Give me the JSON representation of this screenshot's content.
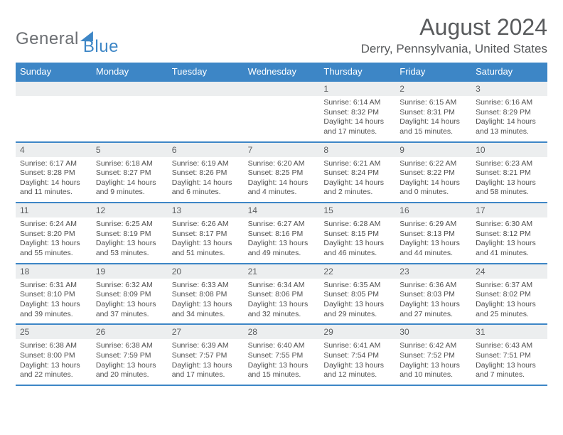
{
  "logo": {
    "part1": "General",
    "part2": "Blue"
  },
  "title": "August 2024",
  "location": "Derry, Pennsylvania, United States",
  "weekdays": [
    "Sunday",
    "Monday",
    "Tuesday",
    "Wednesday",
    "Thursday",
    "Friday",
    "Saturday"
  ],
  "colors": {
    "accent": "#3d86c6",
    "header_text": "#585a5c",
    "daynum_bg": "#eceeef",
    "text": "#4f4f4f"
  },
  "weeks": [
    [
      {
        "num": "",
        "sunrise": "",
        "sunset": "",
        "daylight": ""
      },
      {
        "num": "",
        "sunrise": "",
        "sunset": "",
        "daylight": ""
      },
      {
        "num": "",
        "sunrise": "",
        "sunset": "",
        "daylight": ""
      },
      {
        "num": "",
        "sunrise": "",
        "sunset": "",
        "daylight": ""
      },
      {
        "num": "1",
        "sunrise": "Sunrise: 6:14 AM",
        "sunset": "Sunset: 8:32 PM",
        "daylight": "Daylight: 14 hours and 17 minutes."
      },
      {
        "num": "2",
        "sunrise": "Sunrise: 6:15 AM",
        "sunset": "Sunset: 8:31 PM",
        "daylight": "Daylight: 14 hours and 15 minutes."
      },
      {
        "num": "3",
        "sunrise": "Sunrise: 6:16 AM",
        "sunset": "Sunset: 8:29 PM",
        "daylight": "Daylight: 14 hours and 13 minutes."
      }
    ],
    [
      {
        "num": "4",
        "sunrise": "Sunrise: 6:17 AM",
        "sunset": "Sunset: 8:28 PM",
        "daylight": "Daylight: 14 hours and 11 minutes."
      },
      {
        "num": "5",
        "sunrise": "Sunrise: 6:18 AM",
        "sunset": "Sunset: 8:27 PM",
        "daylight": "Daylight: 14 hours and 9 minutes."
      },
      {
        "num": "6",
        "sunrise": "Sunrise: 6:19 AM",
        "sunset": "Sunset: 8:26 PM",
        "daylight": "Daylight: 14 hours and 6 minutes."
      },
      {
        "num": "7",
        "sunrise": "Sunrise: 6:20 AM",
        "sunset": "Sunset: 8:25 PM",
        "daylight": "Daylight: 14 hours and 4 minutes."
      },
      {
        "num": "8",
        "sunrise": "Sunrise: 6:21 AM",
        "sunset": "Sunset: 8:24 PM",
        "daylight": "Daylight: 14 hours and 2 minutes."
      },
      {
        "num": "9",
        "sunrise": "Sunrise: 6:22 AM",
        "sunset": "Sunset: 8:22 PM",
        "daylight": "Daylight: 14 hours and 0 minutes."
      },
      {
        "num": "10",
        "sunrise": "Sunrise: 6:23 AM",
        "sunset": "Sunset: 8:21 PM",
        "daylight": "Daylight: 13 hours and 58 minutes."
      }
    ],
    [
      {
        "num": "11",
        "sunrise": "Sunrise: 6:24 AM",
        "sunset": "Sunset: 8:20 PM",
        "daylight": "Daylight: 13 hours and 55 minutes."
      },
      {
        "num": "12",
        "sunrise": "Sunrise: 6:25 AM",
        "sunset": "Sunset: 8:19 PM",
        "daylight": "Daylight: 13 hours and 53 minutes."
      },
      {
        "num": "13",
        "sunrise": "Sunrise: 6:26 AM",
        "sunset": "Sunset: 8:17 PM",
        "daylight": "Daylight: 13 hours and 51 minutes."
      },
      {
        "num": "14",
        "sunrise": "Sunrise: 6:27 AM",
        "sunset": "Sunset: 8:16 PM",
        "daylight": "Daylight: 13 hours and 49 minutes."
      },
      {
        "num": "15",
        "sunrise": "Sunrise: 6:28 AM",
        "sunset": "Sunset: 8:15 PM",
        "daylight": "Daylight: 13 hours and 46 minutes."
      },
      {
        "num": "16",
        "sunrise": "Sunrise: 6:29 AM",
        "sunset": "Sunset: 8:13 PM",
        "daylight": "Daylight: 13 hours and 44 minutes."
      },
      {
        "num": "17",
        "sunrise": "Sunrise: 6:30 AM",
        "sunset": "Sunset: 8:12 PM",
        "daylight": "Daylight: 13 hours and 41 minutes."
      }
    ],
    [
      {
        "num": "18",
        "sunrise": "Sunrise: 6:31 AM",
        "sunset": "Sunset: 8:10 PM",
        "daylight": "Daylight: 13 hours and 39 minutes."
      },
      {
        "num": "19",
        "sunrise": "Sunrise: 6:32 AM",
        "sunset": "Sunset: 8:09 PM",
        "daylight": "Daylight: 13 hours and 37 minutes."
      },
      {
        "num": "20",
        "sunrise": "Sunrise: 6:33 AM",
        "sunset": "Sunset: 8:08 PM",
        "daylight": "Daylight: 13 hours and 34 minutes."
      },
      {
        "num": "21",
        "sunrise": "Sunrise: 6:34 AM",
        "sunset": "Sunset: 8:06 PM",
        "daylight": "Daylight: 13 hours and 32 minutes."
      },
      {
        "num": "22",
        "sunrise": "Sunrise: 6:35 AM",
        "sunset": "Sunset: 8:05 PM",
        "daylight": "Daylight: 13 hours and 29 minutes."
      },
      {
        "num": "23",
        "sunrise": "Sunrise: 6:36 AM",
        "sunset": "Sunset: 8:03 PM",
        "daylight": "Daylight: 13 hours and 27 minutes."
      },
      {
        "num": "24",
        "sunrise": "Sunrise: 6:37 AM",
        "sunset": "Sunset: 8:02 PM",
        "daylight": "Daylight: 13 hours and 25 minutes."
      }
    ],
    [
      {
        "num": "25",
        "sunrise": "Sunrise: 6:38 AM",
        "sunset": "Sunset: 8:00 PM",
        "daylight": "Daylight: 13 hours and 22 minutes."
      },
      {
        "num": "26",
        "sunrise": "Sunrise: 6:38 AM",
        "sunset": "Sunset: 7:59 PM",
        "daylight": "Daylight: 13 hours and 20 minutes."
      },
      {
        "num": "27",
        "sunrise": "Sunrise: 6:39 AM",
        "sunset": "Sunset: 7:57 PM",
        "daylight": "Daylight: 13 hours and 17 minutes."
      },
      {
        "num": "28",
        "sunrise": "Sunrise: 6:40 AM",
        "sunset": "Sunset: 7:55 PM",
        "daylight": "Daylight: 13 hours and 15 minutes."
      },
      {
        "num": "29",
        "sunrise": "Sunrise: 6:41 AM",
        "sunset": "Sunset: 7:54 PM",
        "daylight": "Daylight: 13 hours and 12 minutes."
      },
      {
        "num": "30",
        "sunrise": "Sunrise: 6:42 AM",
        "sunset": "Sunset: 7:52 PM",
        "daylight": "Daylight: 13 hours and 10 minutes."
      },
      {
        "num": "31",
        "sunrise": "Sunrise: 6:43 AM",
        "sunset": "Sunset: 7:51 PM",
        "daylight": "Daylight: 13 hours and 7 minutes."
      }
    ]
  ]
}
